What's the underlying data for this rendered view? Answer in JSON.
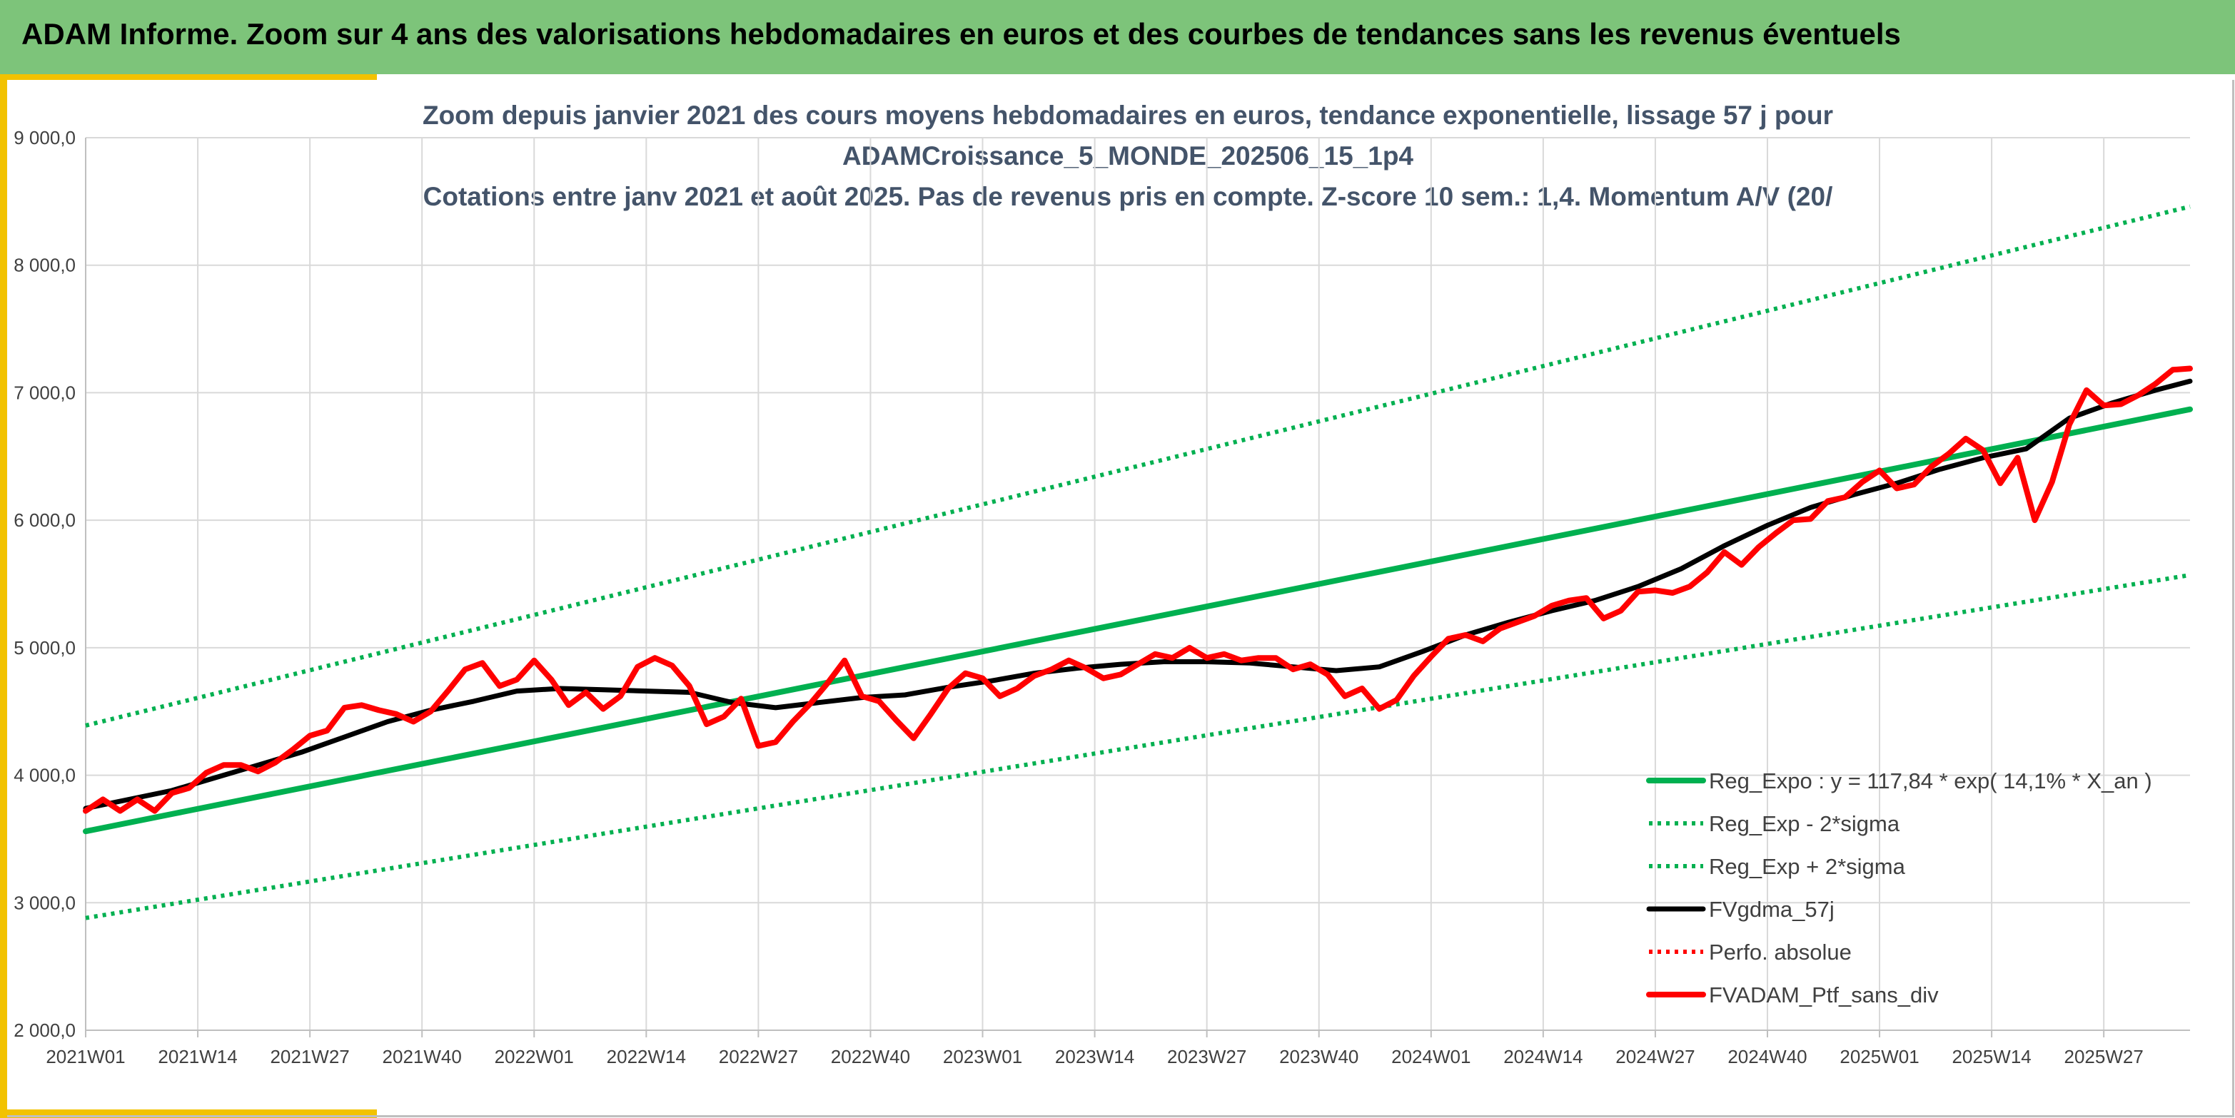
{
  "banner": {
    "title": "ADAM Informe. Zoom sur 4 ans des valorisations hebdomadaires en euros et des courbes de tendances sans les revenus éventuels"
  },
  "colors": {
    "banner": "#7dc47a",
    "accent": "#f2c200",
    "trend": "#00b050",
    "smooth": "#000000",
    "portfolio": "#ff0000",
    "title": "#44546a"
  },
  "chart_data": {
    "type": "line",
    "title_lines": [
      "Zoom depuis janvier 2021 des cours moyens hebdomadaires en euros, tendance exponentielle, lissage 57 j pour",
      "ADAMCroissance_5_MONDE_202506_15_1p4",
      "Cotations entre janv 2021 et août 2025. Pas de revenus pris en compte. Z-score 10 sem.: 1,4. Momentum A/V (20/"
    ],
    "ylim": [
      2000,
      9000
    ],
    "yticks": [
      "2 000,0",
      "3 000,0",
      "4 000,0",
      "5 000,0",
      "6 000,0",
      "7 000,0",
      "8 000,0",
      "9 000,0"
    ],
    "xlim": [
      0,
      244
    ],
    "xticks": [
      {
        "label": "2021W01",
        "week": 0
      },
      {
        "label": "2021W14",
        "week": 13
      },
      {
        "label": "2021W27",
        "week": 26
      },
      {
        "label": "2021W40",
        "week": 39
      },
      {
        "label": "2022W01",
        "week": 52
      },
      {
        "label": "2022W14",
        "week": 65
      },
      {
        "label": "2022W27",
        "week": 78
      },
      {
        "label": "2022W40",
        "week": 91
      },
      {
        "label": "2023W01",
        "week": 104
      },
      {
        "label": "2023W14",
        "week": 117
      },
      {
        "label": "2023W27",
        "week": 130
      },
      {
        "label": "2023W40",
        "week": 143
      },
      {
        "label": "2024W01",
        "week": 156
      },
      {
        "label": "2024W14",
        "week": 169
      },
      {
        "label": "2024W27",
        "week": 182
      },
      {
        "label": "2024W40",
        "week": 195
      },
      {
        "label": "2025W01",
        "week": 208
      },
      {
        "label": "2025W14",
        "week": 221
      },
      {
        "label": "2025W27",
        "week": 234
      }
    ],
    "grid": true,
    "legend_position": "bottom-right",
    "series": [
      {
        "name": "Reg_Expo : y = 117,84 * exp( 14,1% *  X_an )",
        "style": "solid",
        "color": "#00b050",
        "points": [
          [
            0,
            3560
          ],
          [
            244,
            6870
          ]
        ]
      },
      {
        "name": "Reg_Exp - 2*sigma",
        "style": "dotted",
        "color": "#00b050",
        "points": [
          [
            0,
            2880
          ],
          [
            244,
            5570
          ]
        ]
      },
      {
        "name": "Reg_Exp + 2*sigma",
        "style": "dotted",
        "color": "#00b050",
        "points": [
          [
            0,
            4390
          ],
          [
            244,
            8460
          ]
        ]
      },
      {
        "name": "FVgdma_57j",
        "style": "solid",
        "color": "#000000",
        "points": [
          [
            0,
            3740
          ],
          [
            5,
            3810
          ],
          [
            10,
            3880
          ],
          [
            15,
            3980
          ],
          [
            20,
            4080
          ],
          [
            25,
            4180
          ],
          [
            30,
            4300
          ],
          [
            35,
            4420
          ],
          [
            40,
            4510
          ],
          [
            45,
            4580
          ],
          [
            50,
            4660
          ],
          [
            55,
            4680
          ],
          [
            60,
            4670
          ],
          [
            65,
            4660
          ],
          [
            70,
            4650
          ],
          [
            75,
            4570
          ],
          [
            80,
            4530
          ],
          [
            85,
            4570
          ],
          [
            90,
            4610
          ],
          [
            95,
            4630
          ],
          [
            100,
            4690
          ],
          [
            105,
            4740
          ],
          [
            110,
            4800
          ],
          [
            115,
            4840
          ],
          [
            120,
            4870
          ],
          [
            125,
            4890
          ],
          [
            130,
            4890
          ],
          [
            135,
            4880
          ],
          [
            140,
            4850
          ],
          [
            145,
            4820
          ],
          [
            150,
            4850
          ],
          [
            155,
            4970
          ],
          [
            160,
            5100
          ],
          [
            165,
            5200
          ],
          [
            170,
            5290
          ],
          [
            175,
            5370
          ],
          [
            180,
            5480
          ],
          [
            185,
            5620
          ],
          [
            190,
            5800
          ],
          [
            195,
            5960
          ],
          [
            200,
            6100
          ],
          [
            205,
            6200
          ],
          [
            210,
            6290
          ],
          [
            215,
            6400
          ],
          [
            220,
            6490
          ],
          [
            225,
            6560
          ],
          [
            230,
            6800
          ],
          [
            235,
            6920
          ],
          [
            240,
            7020
          ],
          [
            244,
            7090
          ]
        ]
      },
      {
        "name": "Perfo. absolue",
        "style": "dotted",
        "color": "#ff0000",
        "points": []
      },
      {
        "name": "FVADAM_Ptf_sans_div",
        "style": "solid",
        "color": "#ff0000",
        "points": [
          [
            0,
            3720
          ],
          [
            2,
            3810
          ],
          [
            4,
            3720
          ],
          [
            6,
            3810
          ],
          [
            8,
            3720
          ],
          [
            10,
            3860
          ],
          [
            12,
            3900
          ],
          [
            14,
            4020
          ],
          [
            16,
            4080
          ],
          [
            18,
            4080
          ],
          [
            20,
            4030
          ],
          [
            22,
            4100
          ],
          [
            24,
            4200
          ],
          [
            26,
            4310
          ],
          [
            28,
            4350
          ],
          [
            30,
            4530
          ],
          [
            32,
            4550
          ],
          [
            34,
            4510
          ],
          [
            36,
            4480
          ],
          [
            38,
            4420
          ],
          [
            40,
            4500
          ],
          [
            42,
            4660
          ],
          [
            44,
            4830
          ],
          [
            46,
            4880
          ],
          [
            48,
            4700
          ],
          [
            50,
            4750
          ],
          [
            52,
            4900
          ],
          [
            54,
            4750
          ],
          [
            56,
            4550
          ],
          [
            58,
            4650
          ],
          [
            60,
            4520
          ],
          [
            62,
            4620
          ],
          [
            64,
            4850
          ],
          [
            66,
            4920
          ],
          [
            68,
            4860
          ],
          [
            70,
            4700
          ],
          [
            72,
            4400
          ],
          [
            74,
            4460
          ],
          [
            76,
            4600
          ],
          [
            78,
            4230
          ],
          [
            80,
            4260
          ],
          [
            82,
            4420
          ],
          [
            84,
            4560
          ],
          [
            86,
            4720
          ],
          [
            88,
            4900
          ],
          [
            90,
            4620
          ],
          [
            92,
            4580
          ],
          [
            94,
            4430
          ],
          [
            96,
            4290
          ],
          [
            98,
            4480
          ],
          [
            100,
            4680
          ],
          [
            102,
            4800
          ],
          [
            104,
            4760
          ],
          [
            106,
            4620
          ],
          [
            108,
            4680
          ],
          [
            110,
            4780
          ],
          [
            112,
            4830
          ],
          [
            114,
            4900
          ],
          [
            116,
            4840
          ],
          [
            118,
            4760
          ],
          [
            120,
            4790
          ],
          [
            122,
            4870
          ],
          [
            124,
            4950
          ],
          [
            126,
            4920
          ],
          [
            128,
            5000
          ],
          [
            130,
            4920
          ],
          [
            132,
            4950
          ],
          [
            134,
            4900
          ],
          [
            136,
            4920
          ],
          [
            138,
            4920
          ],
          [
            140,
            4830
          ],
          [
            142,
            4870
          ],
          [
            144,
            4790
          ],
          [
            146,
            4620
          ],
          [
            148,
            4680
          ],
          [
            150,
            4520
          ],
          [
            152,
            4590
          ],
          [
            154,
            4780
          ],
          [
            156,
            4930
          ],
          [
            158,
            5070
          ],
          [
            160,
            5100
          ],
          [
            162,
            5050
          ],
          [
            164,
            5150
          ],
          [
            166,
            5200
          ],
          [
            168,
            5250
          ],
          [
            170,
            5330
          ],
          [
            172,
            5370
          ],
          [
            174,
            5390
          ],
          [
            176,
            5230
          ],
          [
            178,
            5290
          ],
          [
            180,
            5440
          ],
          [
            182,
            5450
          ],
          [
            184,
            5430
          ],
          [
            186,
            5480
          ],
          [
            188,
            5590
          ],
          [
            190,
            5750
          ],
          [
            192,
            5650
          ],
          [
            194,
            5790
          ],
          [
            196,
            5900
          ],
          [
            198,
            6000
          ],
          [
            200,
            6010
          ],
          [
            202,
            6150
          ],
          [
            204,
            6180
          ],
          [
            206,
            6300
          ],
          [
            208,
            6390
          ],
          [
            210,
            6250
          ],
          [
            212,
            6280
          ],
          [
            214,
            6420
          ],
          [
            216,
            6520
          ],
          [
            218,
            6640
          ],
          [
            220,
            6550
          ],
          [
            222,
            6290
          ],
          [
            224,
            6490
          ],
          [
            226,
            6000
          ],
          [
            228,
            6300
          ],
          [
            230,
            6750
          ],
          [
            232,
            7020
          ],
          [
            234,
            6900
          ],
          [
            236,
            6910
          ],
          [
            238,
            6980
          ],
          [
            240,
            7070
          ],
          [
            242,
            7180
          ],
          [
            244,
            7190
          ]
        ]
      }
    ]
  }
}
